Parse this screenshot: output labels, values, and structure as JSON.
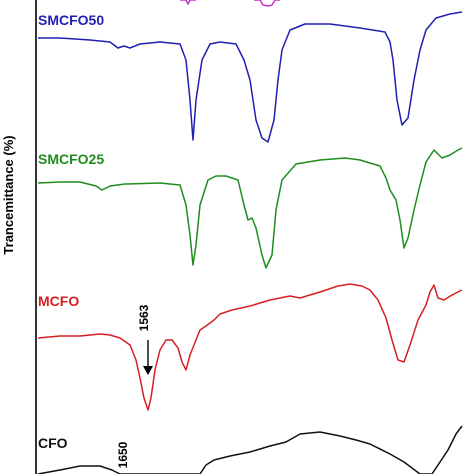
{
  "chart_data": {
    "type": "line",
    "title": "",
    "xlabel": "",
    "ylabel": "Trancemittance (%)",
    "grid": false,
    "legend": "none",
    "x_axis_visible": false,
    "y_ticks_visible": false,
    "series": [
      {
        "name": "SMCFO50",
        "color": "#1f1fb4",
        "points": [
          [
            38,
            38
          ],
          [
            60,
            38
          ],
          [
            90,
            40
          ],
          [
            110,
            42
          ],
          [
            118,
            48
          ],
          [
            124,
            46
          ],
          [
            130,
            48
          ],
          [
            140,
            44
          ],
          [
            160,
            42
          ],
          [
            180,
            44
          ],
          [
            186,
            60
          ],
          [
            190,
            100
          ],
          [
            193,
            140
          ],
          [
            196,
            100
          ],
          [
            202,
            60
          ],
          [
            210,
            44
          ],
          [
            220,
            42
          ],
          [
            236,
            44
          ],
          [
            244,
            60
          ],
          [
            250,
            80
          ],
          [
            256,
            120
          ],
          [
            262,
            138
          ],
          [
            268,
            142
          ],
          [
            274,
            120
          ],
          [
            278,
            80
          ],
          [
            282,
            50
          ],
          [
            290,
            30
          ],
          [
            305,
            24
          ],
          [
            330,
            24
          ],
          [
            360,
            28
          ],
          [
            385,
            32
          ],
          [
            390,
            42
          ],
          [
            393,
            60
          ],
          [
            397,
            100
          ],
          [
            402,
            125
          ],
          [
            408,
            118
          ],
          [
            414,
            80
          ],
          [
            420,
            50
          ],
          [
            426,
            30
          ],
          [
            436,
            18
          ],
          [
            450,
            14
          ],
          [
            462,
            12
          ]
        ]
      },
      {
        "name": "SMCFO25",
        "color": "#1e8c1e",
        "points": [
          [
            38,
            183
          ],
          [
            60,
            182
          ],
          [
            80,
            182
          ],
          [
            96,
            186
          ],
          [
            102,
            190
          ],
          [
            110,
            186
          ],
          [
            125,
            184
          ],
          [
            160,
            183
          ],
          [
            180,
            185
          ],
          [
            186,
            205
          ],
          [
            190,
            235
          ],
          [
            193,
            265
          ],
          [
            196,
            245
          ],
          [
            200,
            205
          ],
          [
            208,
            180
          ],
          [
            216,
            176
          ],
          [
            226,
            176
          ],
          [
            238,
            180
          ],
          [
            244,
            205
          ],
          [
            248,
            220
          ],
          [
            252,
            218
          ],
          [
            256,
            228
          ],
          [
            262,
            255
          ],
          [
            266,
            268
          ],
          [
            272,
            255
          ],
          [
            276,
            210
          ],
          [
            282,
            180
          ],
          [
            296,
            164
          ],
          [
            320,
            160
          ],
          [
            345,
            158
          ],
          [
            360,
            160
          ],
          [
            380,
            166
          ],
          [
            386,
            178
          ],
          [
            390,
            190
          ],
          [
            396,
            200
          ],
          [
            400,
            220
          ],
          [
            404,
            248
          ],
          [
            408,
            238
          ],
          [
            414,
            210
          ],
          [
            420,
            185
          ],
          [
            426,
            162
          ],
          [
            434,
            150
          ],
          [
            442,
            158
          ],
          [
            450,
            155
          ],
          [
            458,
            150
          ],
          [
            462,
            148
          ]
        ]
      },
      {
        "name": "MCFO",
        "color": "#d62020",
        "points": [
          [
            38,
            338
          ],
          [
            60,
            336
          ],
          [
            80,
            336
          ],
          [
            100,
            334
          ],
          [
            110,
            335
          ],
          [
            120,
            338
          ],
          [
            130,
            345
          ],
          [
            136,
            360
          ],
          [
            140,
            378
          ],
          [
            144,
            398
          ],
          [
            148,
            410
          ],
          [
            151,
            398
          ],
          [
            155,
            370
          ],
          [
            160,
            350
          ],
          [
            166,
            340
          ],
          [
            172,
            340
          ],
          [
            178,
            348
          ],
          [
            182,
            362
          ],
          [
            186,
            370
          ],
          [
            190,
            355
          ],
          [
            196,
            340
          ],
          [
            200,
            330
          ],
          [
            206,
            326
          ],
          [
            214,
            320
          ],
          [
            220,
            314
          ],
          [
            232,
            310
          ],
          [
            250,
            306
          ],
          [
            270,
            300
          ],
          [
            290,
            296
          ],
          [
            300,
            298
          ],
          [
            320,
            292
          ],
          [
            338,
            286
          ],
          [
            350,
            284
          ],
          [
            362,
            286
          ],
          [
            370,
            290
          ],
          [
            378,
            300
          ],
          [
            386,
            318
          ],
          [
            392,
            340
          ],
          [
            398,
            360
          ],
          [
            404,
            362
          ],
          [
            410,
            345
          ],
          [
            418,
            320
          ],
          [
            426,
            305
          ],
          [
            430,
            292
          ],
          [
            434,
            285
          ],
          [
            438,
            298
          ],
          [
            444,
            300
          ],
          [
            452,
            295
          ],
          [
            462,
            290
          ]
        ]
      },
      {
        "name": "CFO",
        "color": "#111111",
        "points": [
          [
            38,
            474
          ],
          [
            60,
            470
          ],
          [
            80,
            466
          ],
          [
            100,
            466
          ],
          [
            112,
            470
          ],
          [
            120,
            474
          ],
          [
            200,
            474
          ],
          [
            206,
            465
          ],
          [
            214,
            460
          ],
          [
            230,
            456
          ],
          [
            250,
            452
          ],
          [
            270,
            446
          ],
          [
            286,
            442
          ],
          [
            300,
            434
          ],
          [
            320,
            432
          ],
          [
            340,
            436
          ],
          [
            356,
            440
          ],
          [
            370,
            444
          ],
          [
            390,
            454
          ],
          [
            404,
            462
          ],
          [
            420,
            474
          ],
          [
            432,
            474
          ],
          [
            440,
            462
          ],
          [
            448,
            450
          ],
          [
            456,
            434
          ],
          [
            462,
            426
          ]
        ]
      },
      {
        "name": "",
        "color": "#cc33cc",
        "points": [
          [
            180,
            0
          ],
          [
            186,
            0
          ],
          [
            188,
            4
          ],
          [
            190,
            0
          ],
          [
            196,
            0
          ]
        ]
      },
      {
        "name": "",
        "color": "#cc33cc",
        "points": [
          [
            254,
            0
          ],
          [
            260,
            0
          ],
          [
            263,
            5
          ],
          [
            268,
            6
          ],
          [
            272,
            5
          ],
          [
            275,
            0
          ],
          [
            280,
            0
          ]
        ]
      }
    ],
    "series_labels": [
      {
        "text": "SMCFO50",
        "color": "#1f1fb4"
      },
      {
        "text": "SMCFO25",
        "color": "#1e8c1e"
      },
      {
        "text": "MCFO",
        "color": "#d62020"
      },
      {
        "text": "CFO",
        "color": "#111111"
      }
    ],
    "annotations": [
      {
        "text": "1563",
        "x": 148,
        "y": 318
      },
      {
        "text": "1650",
        "x": 127,
        "y": 455
      }
    ]
  }
}
